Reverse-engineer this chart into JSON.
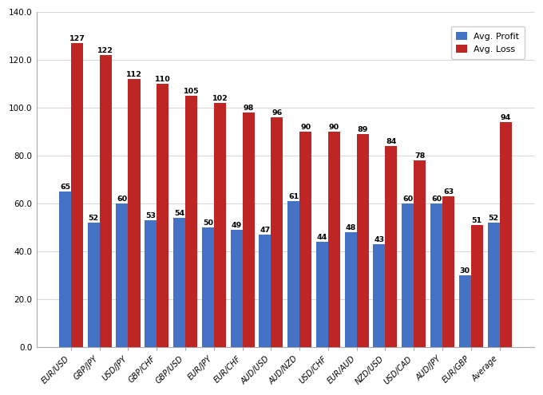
{
  "categories": [
    "EUR/USD",
    "GBP/JPY",
    "USD/JPY",
    "GBP/CHF",
    "GBP/USD",
    "EUR/JPY",
    "EUR/CHF",
    "AUD/USD",
    "AUD/NZD",
    "USD/CHF",
    "EUR/AUD",
    "NZD/USD",
    "USD/CAD",
    "AUD/JPY",
    "EUR/GBP",
    "Average"
  ],
  "avg_profit": [
    65,
    52,
    60,
    53,
    54,
    50,
    49,
    47,
    61,
    44,
    48,
    43,
    60,
    60,
    30,
    52
  ],
  "avg_loss": [
    127,
    122,
    112,
    110,
    105,
    102,
    98,
    96,
    90,
    90,
    89,
    84,
    78,
    63,
    51,
    94
  ],
  "profit_color": "#4472C4",
  "loss_color": "#BE2625",
  "bar_width": 0.42,
  "ylim": [
    0,
    140
  ],
  "yticks": [
    0,
    20,
    40,
    60,
    80,
    100,
    120,
    140
  ],
  "ytick_labels": [
    "0.0",
    "20.0",
    "40.0",
    "60.0",
    "80.0",
    "100.0",
    "120.0",
    "140.0"
  ],
  "legend_profit": "Avg. Profit",
  "legend_loss": "Avg. Loss",
  "background_color": "#FFFFFF",
  "grid_color": "#D8D8D8",
  "label_fontsize": 8,
  "tick_fontsize": 7.5,
  "value_fontsize": 6.8,
  "xtick_fontsize": 7.0
}
